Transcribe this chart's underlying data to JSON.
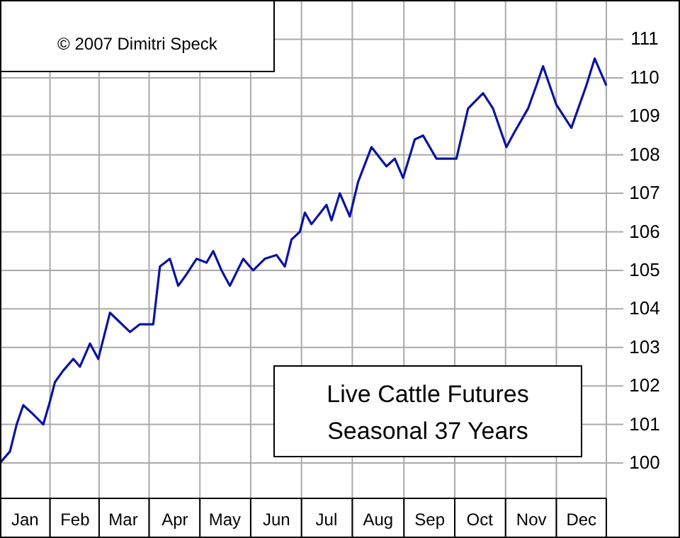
{
  "chart_data": {
    "type": "line",
    "title": "Live Cattle Futures",
    "subtitle": "Seasonal 37 Years",
    "annotations": [
      "© 2007 Dimitri Speck"
    ],
    "x": [
      "--01-01",
      "--01-07",
      "--01-11",
      "--01-15",
      "--01-20",
      "--01-27",
      "--01-31",
      "--02-03",
      "--02-08",
      "--02-14",
      "--02-18",
      "--02-24",
      "--03-01",
      "--03-08",
      "--03-20",
      "--03-26",
      "--04-03",
      "--04-07",
      "--04-13",
      "--04-18",
      "--04-23",
      "--04-29",
      "--05-05",
      "--05-09",
      "--05-14",
      "--05-19",
      "--05-27",
      "--06-02",
      "--06-09",
      "--06-16",
      "--06-21",
      "--06-25",
      "--06-30",
      "--07-03",
      "--07-07",
      "--07-16",
      "--07-19",
      "--07-24",
      "--07-30",
      "--08-04",
      "--08-12",
      "--08-21",
      "--08-26",
      "--08-31",
      "--09-07",
      "--09-12",
      "--09-20",
      "--10-02",
      "--10-09",
      "--10-18",
      "--10-24",
      "--11-01",
      "--11-06",
      "--11-14",
      "--11-19",
      "--11-23",
      "--12-01",
      "--12-10",
      "--12-19",
      "--12-24",
      "--12-29",
      "--12-31"
    ],
    "series": [
      {
        "color": "#0a14a0",
        "values": [
          100.0,
          100.3,
          101.0,
          101.5,
          101.3,
          101.0,
          101.6,
          102.1,
          102.4,
          102.7,
          102.5,
          103.1,
          102.7,
          103.9,
          103.4,
          103.6,
          103.6,
          105.1,
          105.3,
          104.6,
          104.9,
          105.3,
          105.2,
          105.5,
          105.0,
          104.6,
          105.3,
          105.0,
          105.3,
          105.4,
          105.1,
          105.8,
          106.0,
          106.5,
          106.2,
          106.7,
          106.3,
          107.0,
          106.4,
          107.3,
          108.2,
          107.7,
          107.9,
          107.4,
          108.4,
          108.5,
          107.9,
          107.9,
          109.2,
          109.6,
          109.2,
          108.2,
          108.6,
          109.2,
          109.8,
          110.3,
          109.3,
          108.7,
          109.8,
          110.5,
          110.0,
          109.8
        ]
      }
    ],
    "xlim": [
      "--01-01",
      "--12-31"
    ],
    "xticks": [
      {
        "value": "--01-16",
        "label": "Jan"
      },
      {
        "value": "--02-15",
        "label": "Feb"
      },
      {
        "value": "--03-16",
        "label": "Mar"
      },
      {
        "value": "--04-16",
        "label": "Apr"
      },
      {
        "value": "--05-16",
        "label": "May"
      },
      {
        "value": "--06-16",
        "label": "Jun"
      },
      {
        "value": "--07-16",
        "label": "Jul"
      },
      {
        "value": "--08-16",
        "label": "Aug"
      },
      {
        "value": "--09-16",
        "label": "Sep"
      },
      {
        "value": "--10-16",
        "label": "Oct"
      },
      {
        "value": "--11-16",
        "label": "Nov"
      },
      {
        "value": "--12-16",
        "label": "Dec"
      }
    ],
    "ylim": [
      99.08,
      112.02
    ],
    "yticks": [
      100,
      101,
      102,
      103,
      104,
      105,
      106,
      107,
      108,
      109,
      110,
      111
    ],
    "grid": true,
    "marker": "none",
    "line_style": "solid"
  }
}
